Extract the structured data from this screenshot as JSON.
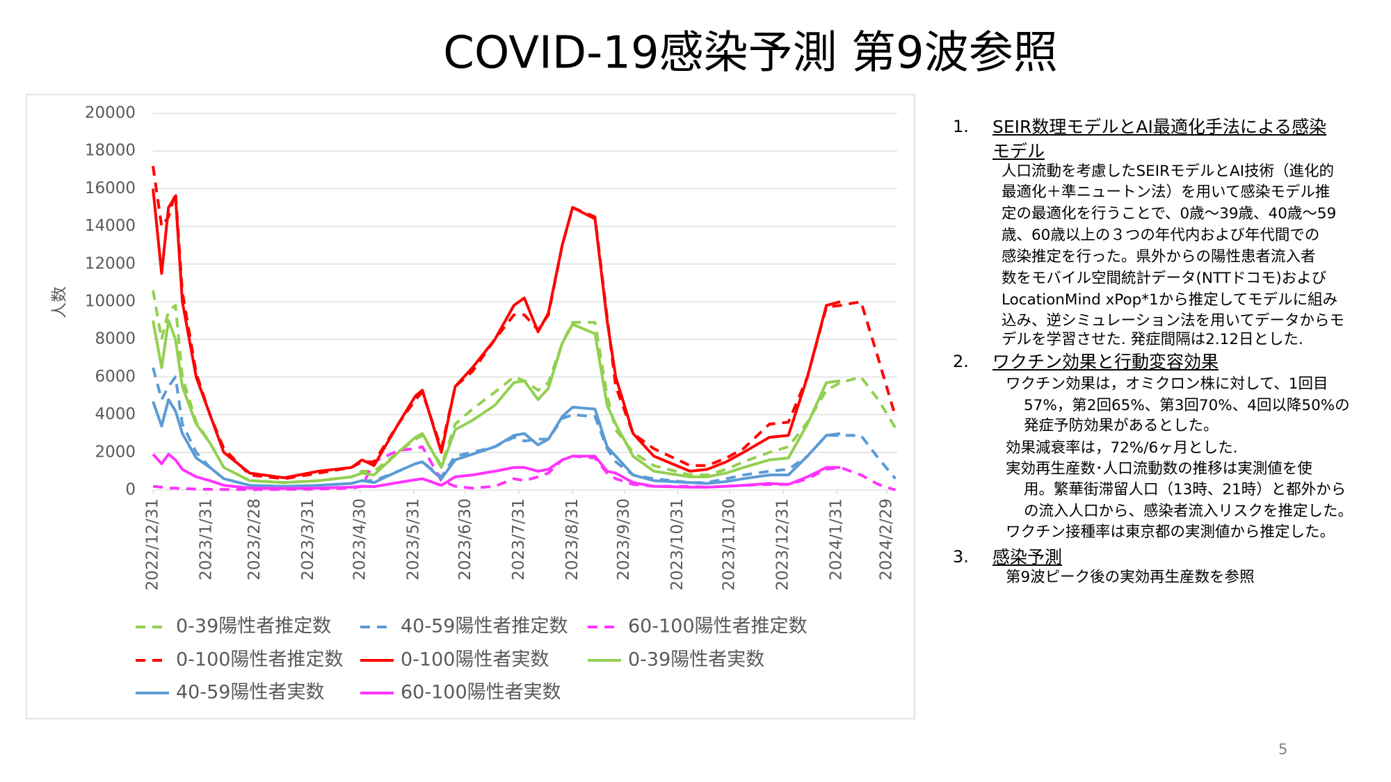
{
  "chart_data": {
    "type": "line",
    "title": "COVID-19感染予測 第9波参照",
    "y_label": "人数",
    "x": [
      "2022/12/31",
      "2023/1/5",
      "2023/1/9",
      "2023/1/13",
      "2023/1/17",
      "2023/1/25",
      "2023/2/2",
      "2023/2/10",
      "2023/2/25",
      "2023/3/17",
      "2023/4/6",
      "2023/4/25",
      "2023/5/1",
      "2023/5/8",
      "2023/5/22",
      "2023/6/1",
      "2023/6/5",
      "2023/6/16",
      "2023/6/24",
      "2023/7/4",
      "2023/7/17",
      "2023/7/28",
      "2023/8/3",
      "2023/8/11",
      "2023/8/17",
      "2023/8/25",
      "2023/8/31",
      "2023/9/13",
      "2023/9/20",
      "2023/9/25",
      "2023/10/5",
      "2023/10/17",
      "2023/11/7",
      "2023/11/17",
      "2023/11/28",
      "2023/12/8",
      "2023/12/23",
      "2024/1/3",
      "2024/1/14",
      "2024/1/25",
      "2024/2/2",
      "2024/2/14",
      "2024/2/24",
      "2024/3/5"
    ],
    "xlim": [
      "2022/12/31",
      "2024/3/6"
    ],
    "xticks": [
      "2022/12/31",
      "2023/1/31",
      "2023/2/28",
      "2023/3/31",
      "2023/4/30",
      "2023/5/31",
      "2023/6/30",
      "2023/7/31",
      "2023/8/31",
      "2023/9/30",
      "2023/10/31",
      "2023/11/30",
      "2023/12/31",
      "2024/1/31",
      "2024/2/29"
    ],
    "ylim": [
      0,
      20000
    ],
    "yticks": [
      0,
      2000,
      4000,
      6000,
      8000,
      10000,
      12000,
      14000,
      16000,
      18000,
      20000
    ],
    "grid": true,
    "series": [
      {
        "name": "0-39陽性者推定数",
        "color": "#92d050",
        "style": "dashed",
        "values": [
          10600,
          8000,
          9500,
          9800,
          6000,
          3600,
          2500,
          1200,
          500,
          400,
          500,
          700,
          1000,
          1000,
          2000,
          2700,
          2900,
          1300,
          3500,
          4300,
          5200,
          6000,
          5800,
          5300,
          5700,
          7800,
          8900,
          8900,
          5000,
          3200,
          2000,
          1300,
          800,
          800,
          1100,
          1500,
          2000,
          2300,
          3600,
          5300,
          5700,
          6000,
          4800,
          3300
        ]
      },
      {
        "name": "40-59陽性者推定数",
        "color": "#5b9bd5",
        "style": "dashed",
        "values": [
          6500,
          4800,
          5500,
          6000,
          3500,
          2000,
          1200,
          600,
          250,
          200,
          250,
          350,
          500,
          500,
          1000,
          1400,
          1500,
          700,
          1800,
          2000,
          2300,
          2800,
          2600,
          2700,
          2700,
          3800,
          4000,
          3900,
          2200,
          1500,
          800,
          600,
          400,
          400,
          600,
          800,
          1000,
          1100,
          1800,
          2900,
          2900,
          2900,
          1700,
          600
        ]
      },
      {
        "name": "60-100陽性者推定数",
        "color": "#ff33ff",
        "style": "dashed",
        "values": [
          200,
          150,
          100,
          100,
          80,
          50,
          40,
          30,
          30,
          30,
          50,
          100,
          200,
          1500,
          2100,
          2200,
          2300,
          500,
          200,
          100,
          200,
          600,
          500,
          700,
          900,
          1600,
          1800,
          1700,
          900,
          600,
          300,
          200,
          200,
          150,
          200,
          250,
          300,
          300,
          600,
          1100,
          1200,
          800,
          300,
          0
        ]
      },
      {
        "name": "0-100陽性者推定数",
        "color": "#ff0000",
        "style": "dashed",
        "values": [
          17200,
          14000,
          14500,
          15800,
          10500,
          6200,
          4000,
          2200,
          800,
          600,
          900,
          1200,
          1500,
          1500,
          3500,
          4800,
          5200,
          2200,
          5500,
          6300,
          8000,
          9300,
          9300,
          8500,
          9300,
          13000,
          15000,
          14500,
          9200,
          5500,
          3000,
          2200,
          1300,
          1300,
          1700,
          2200,
          3500,
          3600,
          6000,
          9700,
          9800,
          10000,
          7000,
          3900
        ]
      },
      {
        "name": "0-100陽性者実数",
        "color": "#ff0000",
        "style": "solid",
        "values": [
          16000,
          11500,
          15000,
          15600,
          10000,
          6000,
          4000,
          2000,
          900,
          650,
          1000,
          1200,
          1600,
          1300,
          3500,
          5000,
          5300,
          2000,
          5500,
          6500,
          8000,
          9800,
          10200,
          8400,
          9400,
          13000,
          15000,
          14400,
          9000,
          6000,
          3000,
          1800,
          1000,
          1100,
          1500,
          2000,
          2800,
          2900,
          6000,
          9800,
          10000,
          null,
          null,
          null
        ]
      },
      {
        "name": "0-39陽性者実数",
        "color": "#92d050",
        "style": "solid",
        "values": [
          9000,
          6500,
          9000,
          8000,
          5500,
          3500,
          2500,
          1200,
          500,
          400,
          500,
          700,
          900,
          800,
          2000,
          2800,
          3000,
          1200,
          3200,
          3700,
          4500,
          5700,
          5800,
          4800,
          5400,
          7800,
          8800,
          8300,
          4500,
          3500,
          1800,
          1000,
          700,
          700,
          900,
          1200,
          1600,
          1700,
          3500,
          5700,
          5800,
          null,
          null,
          null
        ]
      },
      {
        "name": "40-59陽性者実数",
        "color": "#5b9bd5",
        "style": "solid",
        "values": [
          4700,
          3400,
          4800,
          4200,
          3000,
          1700,
          1200,
          600,
          250,
          200,
          250,
          350,
          500,
          400,
          1000,
          1400,
          1500,
          600,
          1600,
          1900,
          2300,
          2900,
          3000,
          2400,
          2700,
          3900,
          4400,
          4300,
          2300,
          1800,
          800,
          500,
          400,
          350,
          450,
          600,
          800,
          800,
          1800,
          2900,
          3000,
          null,
          null,
          null
        ]
      },
      {
        "name": "60-100陽性者実数",
        "color": "#ff33ff",
        "style": "solid",
        "values": [
          1900,
          1400,
          1900,
          1600,
          1100,
          700,
          500,
          250,
          100,
          80,
          100,
          150,
          200,
          180,
          400,
          550,
          600,
          250,
          700,
          800,
          1000,
          1200,
          1200,
          1000,
          1100,
          1600,
          1800,
          1800,
          1000,
          900,
          400,
          200,
          150,
          150,
          200,
          250,
          350,
          300,
          700,
          1200,
          1200,
          null,
          null,
          null
        ]
      }
    ]
  },
  "notes": [
    {
      "number": "1.",
      "heading": [
        "SEIR数理モデルとAI最適化手法による感染",
        "モデル"
      ],
      "lines": [
        "人口流動を考慮したSEIRモデルとAI技術（進化的",
        "最適化＋準ニュートン法）を用いて感染モデル推",
        "定の最適化を行うことで、0歳～39歳、40歳～59",
        "歳、60歳以上の３つの年代内および年代間での",
        "感染推定を行った。県外からの陽性患者流入者",
        "数をモバイル空間統計データ(NTTドコモ)および",
        "LocationMind xPop*1から推定してモデルに組み",
        "込み、逆シミュレーション法を用いてデータからモ",
        "デルを学習させた. 発症間隔は2.12日とした."
      ]
    },
    {
      "number": "2.",
      "heading": [
        "ワクチン効果と行動変容効果"
      ],
      "lines": [
        "ワクチン効果は，オミクロン株に対して、1回目",
        "57%，第2回65%、第3回70%、4回以降50%の",
        "発症予防効果があるとした。",
        "効果減衰率は，72%/6ヶ月とした.",
        "実効再生産数･人口流動数の推移は実測値を使",
        "用。繁華街滞留人口（13時、21時）と都外から",
        "の流入人口から、感染者流入リスクを推定した。",
        "ワクチン接種率は東京都の実測値から推定した。"
      ]
    },
    {
      "number": "3.",
      "heading": [
        "感染予測"
      ],
      "lines": [
        "第9波ピーク後の実効再生産数を参照"
      ]
    }
  ],
  "page_number": 5
}
